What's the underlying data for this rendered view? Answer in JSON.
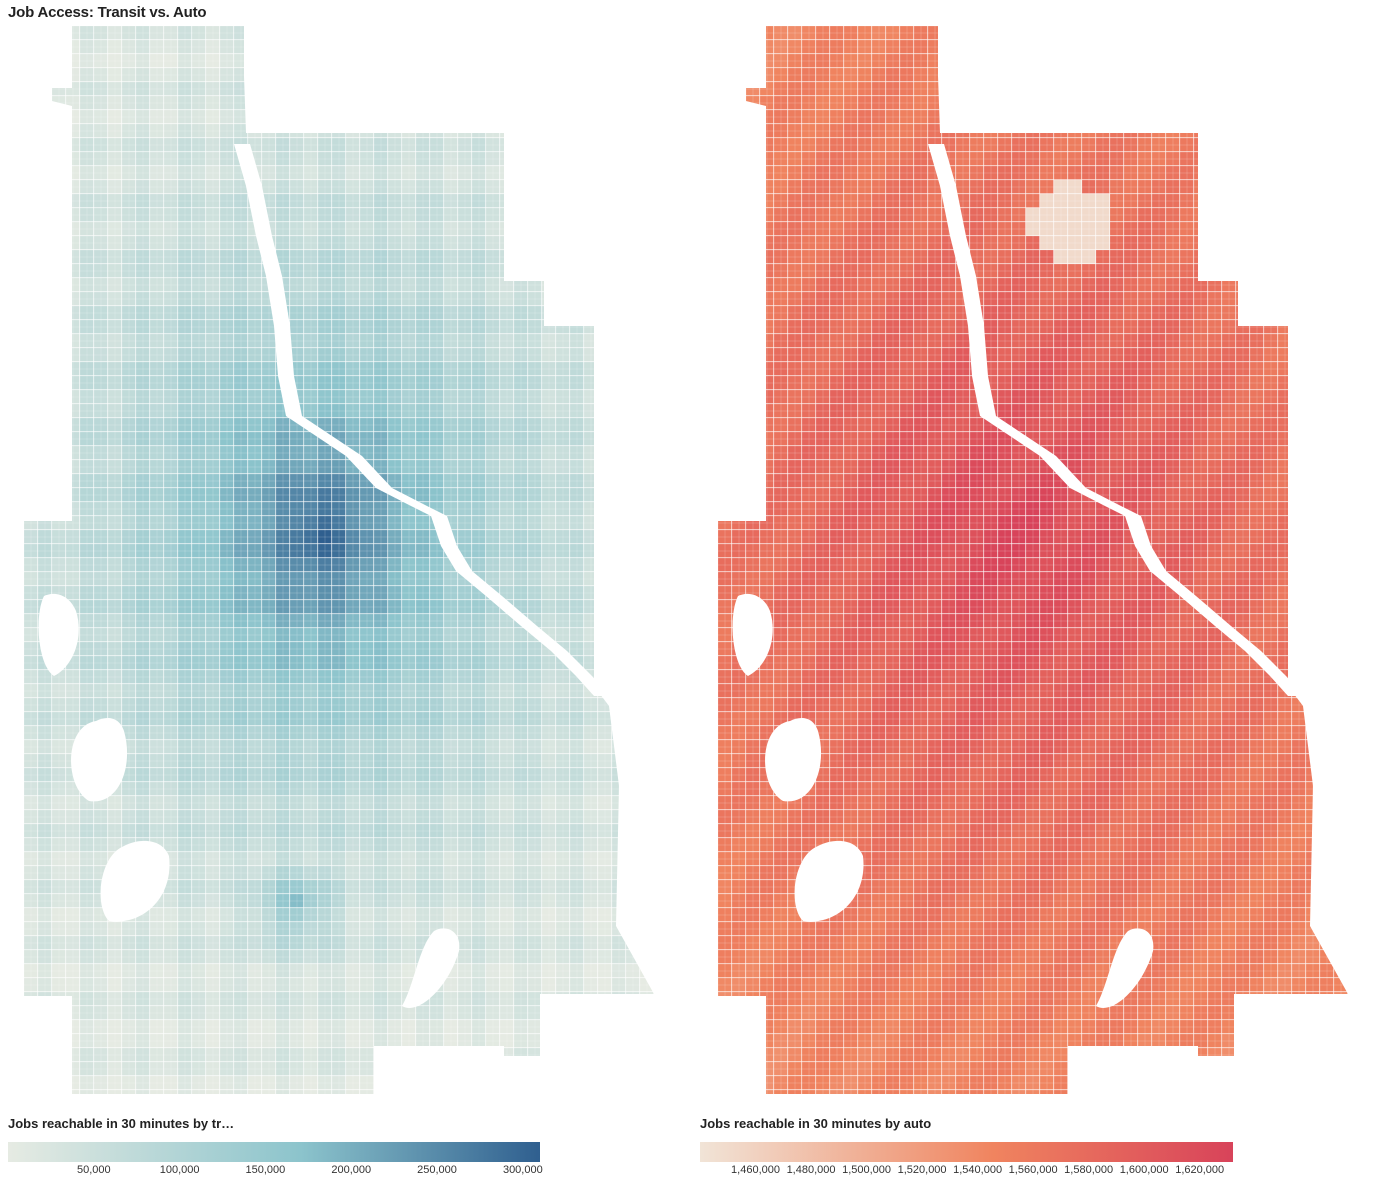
{
  "title": "Job Access: Transit vs. Auto",
  "maps": [
    {
      "id": "transit",
      "legend_title": "Jobs reachable in 30 minutes by tr…",
      "tick_labels": [
        "50,000",
        "100,000",
        "150,000",
        "200,000",
        "250,000",
        "300,000"
      ],
      "tick_values": [
        50000,
        100000,
        150000,
        200000,
        250000,
        300000
      ],
      "domain": [
        0,
        310000
      ],
      "colors": {
        "low": "#e6ebe3",
        "mid": "#8cc4cc",
        "high": "#2f5f8f"
      }
    },
    {
      "id": "auto",
      "legend_title": "Jobs reachable in 30 minutes by auto",
      "tick_labels": [
        "1,460,000",
        "1,480,000",
        "1,500,000",
        "1,520,000",
        "1,540,000",
        "1,560,000",
        "1,580,000",
        "1,600,000",
        "1,620,000"
      ],
      "tick_values": [
        1460000,
        1480000,
        1500000,
        1520000,
        1540000,
        1560000,
        1580000,
        1600000,
        1620000
      ],
      "domain": [
        1440000,
        1632000
      ],
      "colors": {
        "low": "#f1e4d7",
        "mid": "#f0845f",
        "high": "#d8435a"
      }
    }
  ]
}
